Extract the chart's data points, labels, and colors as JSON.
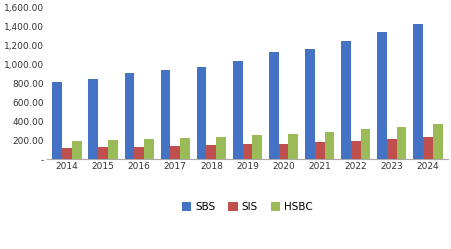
{
  "years": [
    2014,
    2015,
    2016,
    2017,
    2018,
    2019,
    2020,
    2021,
    2022,
    2023,
    2024
  ],
  "SBS": [
    820,
    845,
    910,
    945,
    975,
    1040,
    1130,
    1165,
    1250,
    1340,
    1430
  ],
  "SIS": [
    120,
    125,
    130,
    135,
    148,
    158,
    165,
    185,
    195,
    215,
    230
  ],
  "HSBC": [
    192,
    200,
    215,
    223,
    235,
    255,
    270,
    288,
    315,
    345,
    375
  ],
  "colors": {
    "SBS": "#4472C4",
    "SIS": "#C0504D",
    "HSBC": "#9BBB59"
  },
  "ylim": [
    0,
    1600
  ],
  "yticks": [
    0,
    200,
    400,
    600,
    800,
    1000,
    1200,
    1400,
    1600
  ],
  "ytick_labels": [
    "-",
    "200.00",
    "400.00",
    "600.00",
    "800.00",
    "1,000.00",
    "1,200.00",
    "1,400.00",
    "1,600.00"
  ],
  "bar_width": 0.27,
  "background_color": "#FFFFFF",
  "spine_color": "#AAAAAA",
  "figsize": [
    4.52,
    2.49
  ],
  "dpi": 100
}
